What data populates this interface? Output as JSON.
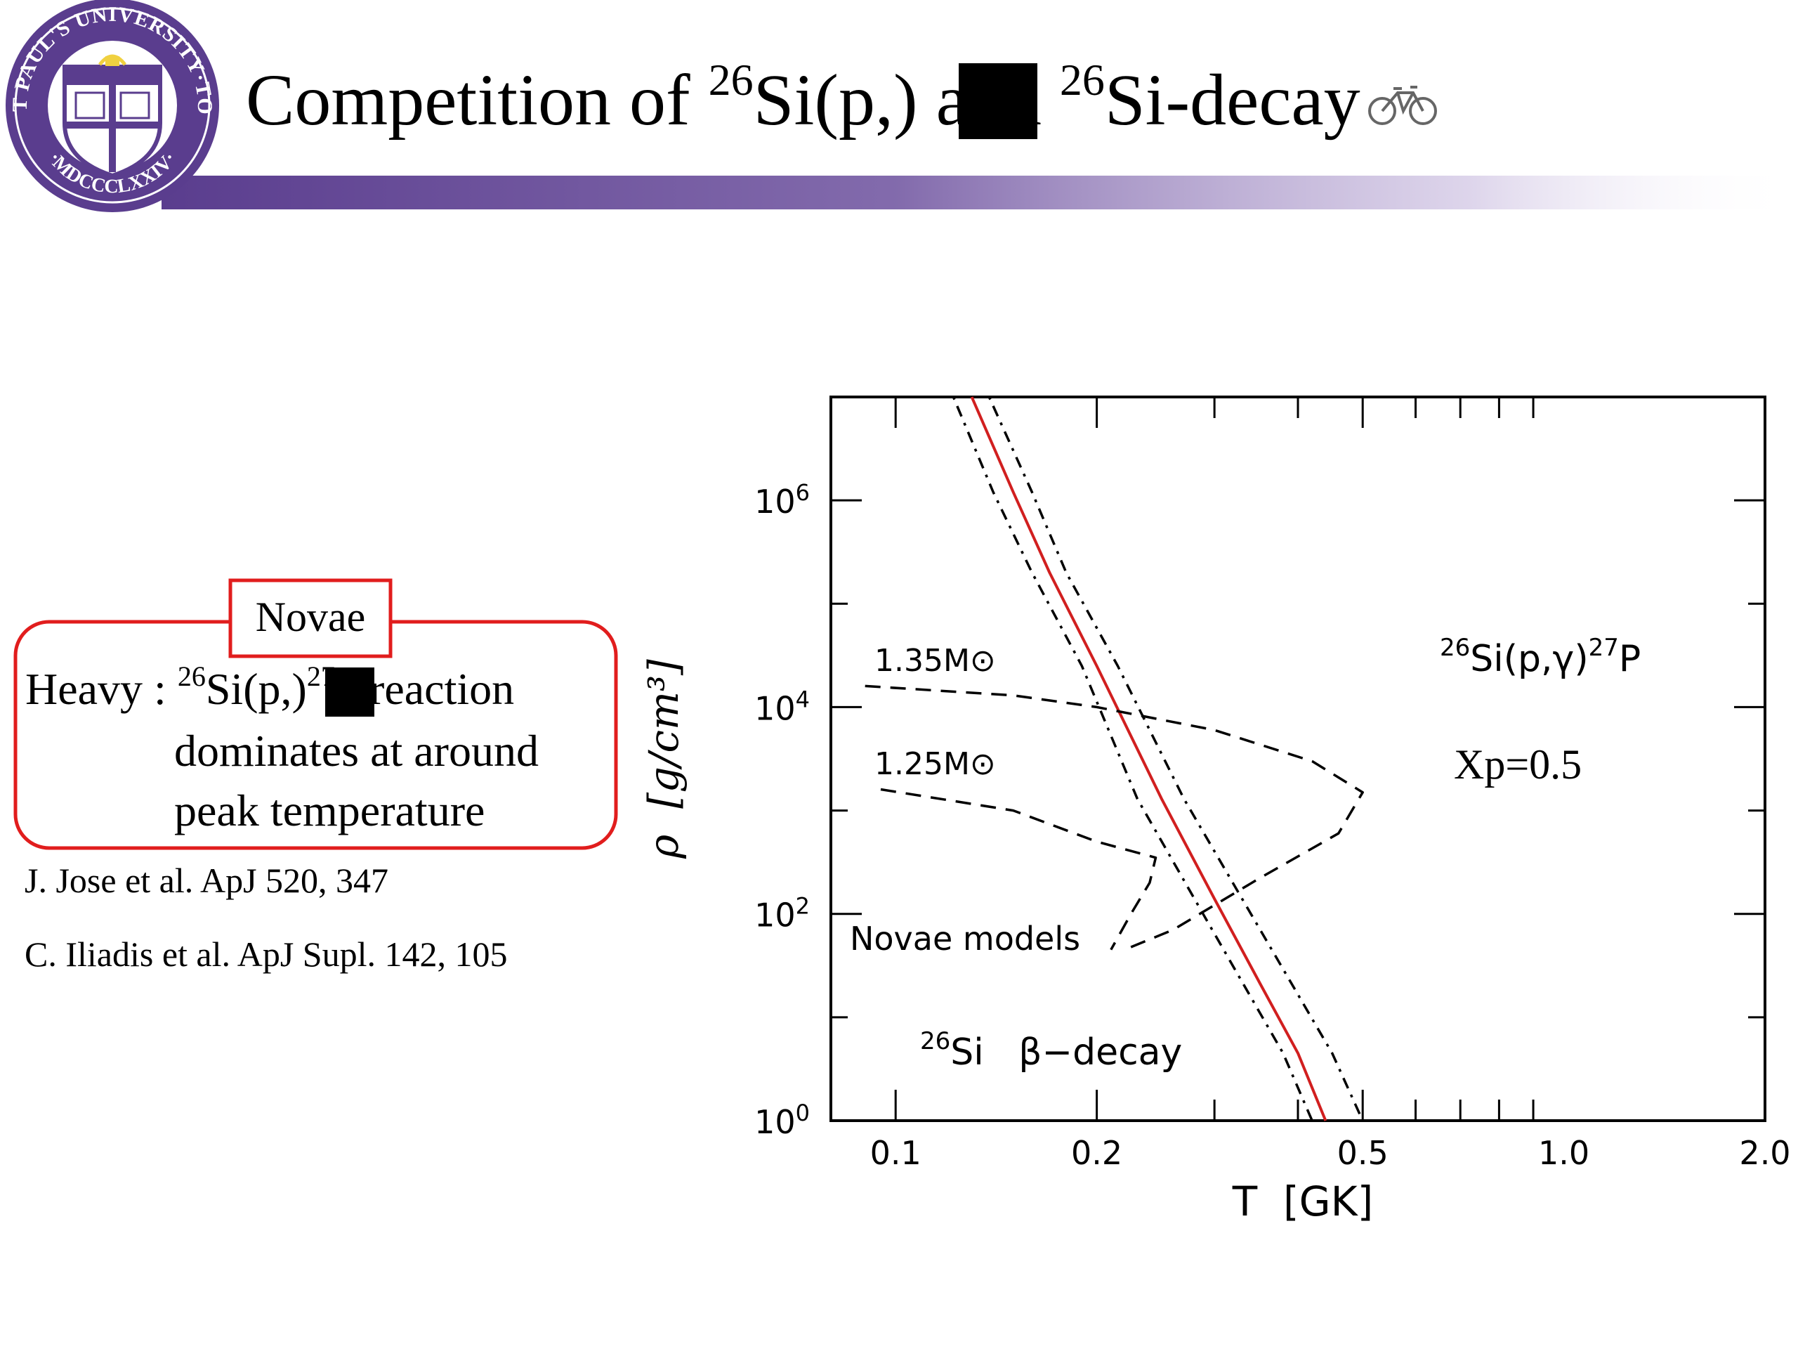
{
  "slide": {
    "title": {
      "prefix": "Competition of ",
      "mass1": "26",
      "element1": "Si(p,",
      "close": ") and ",
      "mass2": "26",
      "element2": "Si",
      "suffix": "-decay",
      "decay_icon": "bicycle-icon"
    },
    "logo": {
      "text_top": "SAINT PAUL'S UNIVERSITY·TOKYO",
      "text_bottom": "·MDCCCLXXIV·",
      "color": "#5a3d8e"
    },
    "novae_label": "Novae",
    "box": {
      "heavy": "Heavy : ",
      "mass1": "26",
      "element1": "Si(p,",
      "close": ")",
      "mass2": "27",
      "element2": "P reaction",
      "line2": "dominates at around",
      "line3": "peak temperature"
    },
    "references": [
      "J. Jose et al. ApJ 520, 347",
      "C. Iliadis et al. ApJ Supl. 142, 105"
    ],
    "colors": {
      "accent": "#d11f1f",
      "band": "#5a3d8e",
      "redaction": "#000000"
    }
  },
  "chart_data": {
    "type": "line",
    "xlabel": "T  [GK]",
    "ylabel": "ρ  [g/cm³]",
    "x_scale": "log",
    "y_scale": "log",
    "xlim": [
      0.08,
      2.0
    ],
    "ylim": [
      1,
      10000000
    ],
    "x_ticks": [
      0.1,
      0.2,
      0.5,
      1.0,
      2.0
    ],
    "x_tick_labels": [
      "0.1",
      "0.2",
      "0.5",
      "1.0",
      "2.0"
    ],
    "y_ticks": [
      1,
      100,
      10000,
      1000000
    ],
    "y_tick_labels": [
      {
        "base": "10",
        "exp": "0"
      },
      {
        "base": "10",
        "exp": "2"
      },
      {
        "base": "10",
        "exp": "4"
      },
      {
        "base": "10",
        "exp": "6"
      }
    ],
    "grid": false,
    "series": [
      {
        "style": "solid",
        "color": "#d11f1f",
        "x": [
          0.13,
          0.15,
          0.17,
          0.2,
          0.25,
          0.3,
          0.35,
          0.4,
          0.44
        ],
        "y": [
          10000000,
          1200000,
          200000,
          25000,
          1300,
          140,
          22,
          4.5,
          1
        ]
      },
      {
        "style": "dash-dot",
        "color": "#000000",
        "x": [
          0.122,
          0.14,
          0.16,
          0.19,
          0.23,
          0.28,
          0.33,
          0.38,
          0.42
        ],
        "y": [
          10000000,
          1200000,
          200000,
          25000,
          1300,
          140,
          22,
          4.5,
          1
        ]
      },
      {
        "style": "dash-dot",
        "color": "#000000",
        "x": [
          0.138,
          0.16,
          0.18,
          0.215,
          0.27,
          0.33,
          0.39,
          0.45,
          0.5
        ],
        "y": [
          10000000,
          1200000,
          200000,
          25000,
          1300,
          140,
          22,
          4.5,
          1
        ]
      },
      {
        "style": "dashed",
        "color": "#000000",
        "x": [
          0.09,
          0.15,
          0.2,
          0.3,
          0.42,
          0.5,
          0.46,
          0.35,
          0.26,
          0.22
        ],
        "y": [
          16000,
          13000,
          10000,
          6000,
          3000,
          1500,
          600,
          220,
          70,
          45
        ]
      },
      {
        "style": "dashed",
        "color": "#000000",
        "x": [
          0.095,
          0.15,
          0.2,
          0.245,
          0.24,
          0.225,
          0.21
        ],
        "y": [
          1600,
          1000,
          500,
          350,
          200,
          100,
          45
        ]
      }
    ],
    "annotations": [
      {
        "text": "1.35M⊙"
      },
      {
        "text": "1.25M⊙"
      },
      {
        "text": "Novae models"
      },
      {
        "mass": "26",
        "text": "Si   β−decay"
      },
      {
        "mass_a": "26",
        "text_a": "Si(p,γ)",
        "mass_b": "27",
        "text_b": "P"
      },
      {
        "text": "Xp=0.5"
      }
    ]
  }
}
